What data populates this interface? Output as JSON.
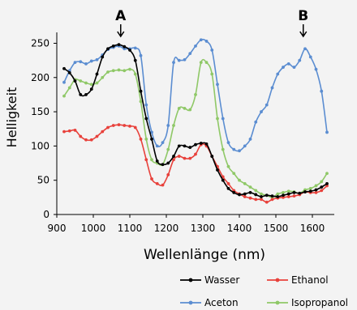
{
  "chart_data": {
    "type": "line",
    "title": "",
    "xlabel": "Wellenlänge (nm)",
    "ylabel": "Helligkeit",
    "xlim": [
      900,
      1660
    ],
    "ylim": [
      0,
      260
    ],
    "xticks": [
      900,
      1000,
      1100,
      1200,
      1300,
      1400,
      1500,
      1600
    ],
    "yticks": [
      0,
      50,
      100,
      150,
      200,
      250
    ],
    "grid": false,
    "legend_position": "bottom",
    "annotations": [
      {
        "label": "A",
        "x": 1075
      },
      {
        "label": "B",
        "x": 1575
      }
    ],
    "series": [
      {
        "name": "Wasser",
        "color": "#000000",
        "marker": "#000000",
        "x": [
          920,
          935,
          950,
          965,
          980,
          995,
          1010,
          1025,
          1040,
          1055,
          1070,
          1085,
          1100,
          1115,
          1130,
          1145,
          1160,
          1175,
          1190,
          1205,
          1220,
          1235,
          1250,
          1265,
          1280,
          1295,
          1310,
          1325,
          1340,
          1355,
          1370,
          1385,
          1400,
          1415,
          1430,
          1445,
          1460,
          1475,
          1490,
          1505,
          1520,
          1535,
          1550,
          1565,
          1580,
          1595,
          1610,
          1625,
          1640
        ],
        "y": [
          213,
          207,
          195,
          175,
          175,
          183,
          205,
          230,
          242,
          246,
          248,
          245,
          240,
          225,
          180,
          140,
          110,
          78,
          73,
          75,
          85,
          100,
          100,
          98,
          102,
          104,
          103,
          85,
          65,
          50,
          38,
          32,
          29,
          30,
          32,
          29,
          26,
          28,
          27,
          26,
          28,
          30,
          32,
          31,
          33,
          34,
          36,
          40,
          45
        ]
      },
      {
        "name": "Ethanol",
        "color": "#e8413b",
        "marker": "#e8413b",
        "x": [
          920,
          935,
          950,
          965,
          980,
          995,
          1010,
          1025,
          1040,
          1055,
          1070,
          1085,
          1100,
          1115,
          1130,
          1145,
          1160,
          1175,
          1190,
          1205,
          1220,
          1235,
          1250,
          1265,
          1280,
          1295,
          1310,
          1325,
          1340,
          1355,
          1370,
          1385,
          1400,
          1415,
          1430,
          1445,
          1460,
          1475,
          1490,
          1505,
          1520,
          1535,
          1550,
          1565,
          1580,
          1595,
          1610,
          1625,
          1640
        ],
        "y": [
          121,
          122,
          123,
          114,
          109,
          109,
          114,
          121,
          127,
          130,
          131,
          130,
          129,
          127,
          110,
          80,
          52,
          45,
          43,
          58,
          80,
          85,
          82,
          82,
          88,
          102,
          100,
          85,
          70,
          55,
          45,
          35,
          30,
          26,
          24,
          22,
          22,
          18,
          22,
          24,
          25,
          26,
          27,
          29,
          33,
          32,
          32,
          35,
          42
        ]
      },
      {
        "name": "Aceton",
        "color": "#5b8dd1",
        "marker": "#5b8dd1",
        "x": [
          920,
          935,
          950,
          965,
          980,
          995,
          1010,
          1025,
          1040,
          1055,
          1070,
          1085,
          1100,
          1115,
          1130,
          1145,
          1160,
          1175,
          1190,
          1205,
          1220,
          1235,
          1250,
          1265,
          1280,
          1295,
          1310,
          1325,
          1340,
          1355,
          1370,
          1385,
          1400,
          1415,
          1430,
          1445,
          1460,
          1475,
          1490,
          1505,
          1520,
          1535,
          1550,
          1565,
          1580,
          1595,
          1610,
          1625,
          1640
        ],
        "y": [
          193,
          210,
          222,
          223,
          220,
          224,
          226,
          233,
          241,
          244,
          246,
          242,
          242,
          243,
          232,
          160,
          120,
          100,
          105,
          130,
          222,
          225,
          226,
          235,
          246,
          255,
          253,
          240,
          190,
          140,
          105,
          95,
          93,
          100,
          110,
          135,
          150,
          160,
          185,
          205,
          215,
          220,
          215,
          225,
          242,
          230,
          212,
          180,
          120
        ]
      },
      {
        "name": "Isopropanol",
        "color": "#8fc867",
        "marker": "#8fc867",
        "x": [
          920,
          935,
          950,
          965,
          980,
          995,
          1010,
          1025,
          1040,
          1055,
          1070,
          1085,
          1100,
          1115,
          1130,
          1145,
          1160,
          1175,
          1190,
          1205,
          1220,
          1235,
          1250,
          1265,
          1280,
          1295,
          1310,
          1325,
          1340,
          1355,
          1370,
          1385,
          1400,
          1415,
          1430,
          1445,
          1460,
          1475,
          1490,
          1505,
          1520,
          1535,
          1550,
          1565,
          1580,
          1595,
          1610,
          1625,
          1640
        ],
        "y": [
          173,
          185,
          197,
          195,
          192,
          190,
          192,
          200,
          208,
          210,
          211,
          210,
          212,
          205,
          165,
          110,
          80,
          75,
          73,
          95,
          130,
          155,
          155,
          153,
          175,
          222,
          222,
          205,
          140,
          95,
          70,
          60,
          50,
          45,
          40,
          35,
          30,
          28,
          25,
          30,
          32,
          34,
          33,
          31,
          36,
          38,
          42,
          48,
          60
        ]
      }
    ]
  }
}
